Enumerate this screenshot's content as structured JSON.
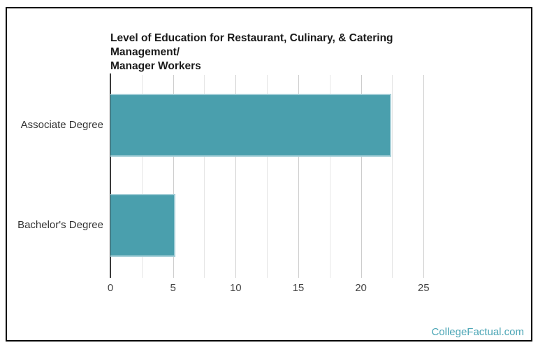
{
  "page": {
    "watermark": "CollegeFactual.com"
  },
  "chart_data": {
    "type": "bar",
    "orientation": "horizontal",
    "title": "Level of Education for Restaurant, Culinary, & Catering Management/ Manager Workers",
    "title_lines": [
      "Level of Education for Restaurant, Culinary, & Catering Management/",
      "Manager Workers"
    ],
    "categories": [
      "Associate Degree",
      "Bachelor's Degree"
    ],
    "values": [
      22.4,
      5.2
    ],
    "xlabel": "",
    "ylabel": "",
    "xlim": [
      0,
      28
    ],
    "x_ticks": [
      0,
      5,
      10,
      15,
      20,
      25
    ],
    "minor_tick_step": 2.5,
    "grid": true,
    "legend": "none",
    "colors": {
      "bar_fill": "#4a9fad",
      "bar_stroke": "#a3ced7",
      "axis_line": "#3a3a3a",
      "major_grid": "#cccccc",
      "minor_grid": "#e6e6e6",
      "title_text": "#1a1a1a",
      "tick_text": "#444444",
      "watermark": "#4aa5b5"
    }
  }
}
